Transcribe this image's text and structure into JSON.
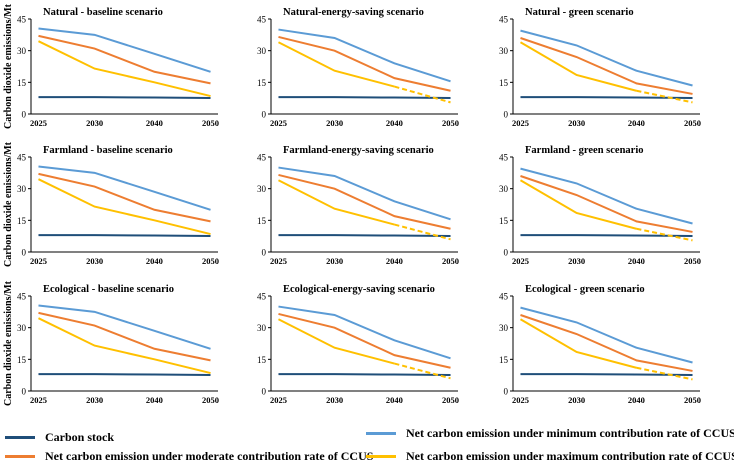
{
  "colors": {
    "carbon_stock": "#1f4e79",
    "min_ccus": "#5b9bd5",
    "moderate_ccus": "#ed7d31",
    "max_ccus": "#ffc000"
  },
  "y_axis_label": "Carbon dioxide emissions/Mt",
  "legend": [
    {
      "key": "carbon_stock",
      "label": "Carbon stock"
    },
    {
      "key": "min_ccus",
      "label": "Net carbon emission under minimum contribution rate of CCUS"
    },
    {
      "key": "moderate_ccus",
      "label": "Net carbon emission under moderate contribution rate of CCUS"
    },
    {
      "key": "max_ccus",
      "label": "Net carbon emission under maximum contribution rate of CCUS"
    }
  ],
  "chart_data": [
    {
      "type": "line",
      "title": "Natural - baseline scenario",
      "categories": [
        "2025",
        "2030",
        "2040",
        "2050"
      ],
      "ylim": [
        0,
        45
      ],
      "yticks": [
        0,
        15,
        30,
        45
      ],
      "y_tick_labels": [
        "0",
        "15",
        "30",
        "45"
      ],
      "show_ylabel": true,
      "series": [
        {
          "key": "carbon_stock",
          "values": [
            8,
            8,
            7.8,
            7.6
          ]
        },
        {
          "key": "min_ccus",
          "values": [
            40.5,
            37.5,
            28.5,
            20
          ]
        },
        {
          "key": "moderate_ccus",
          "values": [
            37,
            31,
            20,
            14.5
          ]
        },
        {
          "key": "max_ccus",
          "values": [
            34.5,
            21.5,
            15,
            8.5
          ]
        }
      ]
    },
    {
      "type": "line",
      "title": "Natural-energy-saving scenario",
      "categories": [
        "2025",
        "2030",
        "2040",
        "2050"
      ],
      "ylim": [
        0,
        45
      ],
      "yticks": [
        0,
        15,
        30,
        45
      ],
      "y_tick_labels": [
        "0",
        "15",
        "30",
        "45"
      ],
      "show_ylabel": false,
      "series": [
        {
          "key": "carbon_stock",
          "values": [
            8,
            8,
            7.8,
            7.6
          ]
        },
        {
          "key": "min_ccus",
          "values": [
            40,
            36,
            24,
            15.5
          ]
        },
        {
          "key": "moderate_ccus",
          "values": [
            36.5,
            30,
            17,
            11
          ]
        },
        {
          "key": "max_ccus",
          "values": [
            34,
            20.5,
            13,
            5.5
          ],
          "dashed_last": true
        }
      ]
    },
    {
      "type": "line",
      "title": "Natural - green scenario",
      "categories": [
        "2025",
        "2030",
        "2040",
        "2050"
      ],
      "ylim": [
        0,
        45
      ],
      "yticks": [
        0,
        15,
        30,
        45
      ],
      "y_tick_labels": [
        "0",
        "15",
        "30",
        "45"
      ],
      "show_ylabel": false,
      "series": [
        {
          "key": "carbon_stock",
          "values": [
            8,
            8,
            7.8,
            7.6
          ]
        },
        {
          "key": "min_ccus",
          "values": [
            39.5,
            32.5,
            20.5,
            13.5
          ]
        },
        {
          "key": "moderate_ccus",
          "values": [
            36,
            27,
            14.5,
            9.5
          ]
        },
        {
          "key": "max_ccus",
          "values": [
            34,
            18.5,
            11,
            5.5
          ],
          "dashed_last": true
        }
      ]
    },
    {
      "type": "line",
      "title": "Farmland - baseline scenario",
      "categories": [
        "2025",
        "2030",
        "2040",
        "2050"
      ],
      "ylim": [
        0,
        45
      ],
      "yticks": [
        0,
        15,
        30,
        45
      ],
      "y_tick_labels": [
        "0",
        "15",
        "30",
        "45"
      ],
      "show_ylabel": true,
      "series": [
        {
          "key": "carbon_stock",
          "values": [
            8,
            8,
            7.8,
            7.6
          ]
        },
        {
          "key": "min_ccus",
          "values": [
            40.5,
            37.5,
            28.5,
            20
          ]
        },
        {
          "key": "moderate_ccus",
          "values": [
            37,
            31,
            20,
            14.5
          ]
        },
        {
          "key": "max_ccus",
          "values": [
            34.5,
            21.5,
            15,
            8.5
          ]
        }
      ]
    },
    {
      "type": "line",
      "title": "Farmland-energy-saving  scenario",
      "categories": [
        "2025",
        "2030",
        "2040",
        "2050"
      ],
      "ylim": [
        0,
        45
      ],
      "yticks": [
        0,
        15,
        30,
        45
      ],
      "y_tick_labels": [
        "0",
        "15",
        "30",
        "45"
      ],
      "show_ylabel": false,
      "series": [
        {
          "key": "carbon_stock",
          "values": [
            8,
            8,
            7.8,
            7.6
          ]
        },
        {
          "key": "min_ccus",
          "values": [
            40,
            36,
            24,
            15.5
          ]
        },
        {
          "key": "moderate_ccus",
          "values": [
            36.5,
            30,
            17,
            11
          ]
        },
        {
          "key": "max_ccus",
          "values": [
            34,
            20.5,
            13,
            6
          ],
          "dashed_last": true
        }
      ]
    },
    {
      "type": "line",
      "title": "Farmland - green scenario",
      "categories": [
        "2025",
        "2030",
        "2040",
        "2050"
      ],
      "ylim": [
        0,
        45
      ],
      "yticks": [
        0,
        15,
        30,
        45
      ],
      "y_tick_labels": [
        "0",
        "15",
        "30",
        "45"
      ],
      "show_ylabel": false,
      "series": [
        {
          "key": "carbon_stock",
          "values": [
            8,
            8,
            7.8,
            7.6
          ]
        },
        {
          "key": "min_ccus",
          "values": [
            39.5,
            32.5,
            20.5,
            13.5
          ]
        },
        {
          "key": "moderate_ccus",
          "values": [
            36,
            27,
            14.5,
            9.5
          ]
        },
        {
          "key": "max_ccus",
          "values": [
            34,
            18.5,
            11,
            5.5
          ],
          "dashed_last": true
        }
      ]
    },
    {
      "type": "line",
      "title": "Ecological - baseline scenario",
      "categories": [
        "2025",
        "2030",
        "2040",
        "2050"
      ],
      "ylim": [
        0,
        45
      ],
      "yticks": [
        0,
        15,
        30,
        45
      ],
      "y_tick_labels": [
        "0",
        "15",
        "30",
        "45"
      ],
      "show_ylabel": true,
      "series": [
        {
          "key": "carbon_stock",
          "values": [
            8,
            8,
            7.8,
            7.6
          ]
        },
        {
          "key": "min_ccus",
          "values": [
            40.5,
            37.5,
            28.5,
            20
          ]
        },
        {
          "key": "moderate_ccus",
          "values": [
            37,
            31,
            20,
            14.5
          ]
        },
        {
          "key": "max_ccus",
          "values": [
            34.5,
            21.5,
            15,
            8.5
          ]
        }
      ]
    },
    {
      "type": "line",
      "title": "Ecological-energy-saving scenario",
      "categories": [
        "2025",
        "2030",
        "2040",
        "2050"
      ],
      "ylim": [
        0,
        45
      ],
      "yticks": [
        0,
        15,
        30,
        45
      ],
      "y_tick_labels": [
        "0",
        "15",
        "30",
        "45"
      ],
      "show_ylabel": false,
      "series": [
        {
          "key": "carbon_stock",
          "values": [
            8,
            8,
            7.8,
            7.6
          ]
        },
        {
          "key": "min_ccus",
          "values": [
            40,
            36,
            24,
            15.5
          ]
        },
        {
          "key": "moderate_ccus",
          "values": [
            36.5,
            30,
            17,
            11
          ]
        },
        {
          "key": "max_ccus",
          "values": [
            34,
            20.5,
            13,
            6
          ],
          "dashed_last": true
        }
      ]
    },
    {
      "type": "line",
      "title": "Ecological - green scenario",
      "categories": [
        "2025",
        "2030",
        "2040",
        "2050"
      ],
      "ylim": [
        0,
        45
      ],
      "yticks": [
        0,
        15,
        30,
        45
      ],
      "y_tick_labels": [
        "0",
        "15",
        "30",
        "45"
      ],
      "show_ylabel": false,
      "series": [
        {
          "key": "carbon_stock",
          "values": [
            8,
            8,
            7.8,
            7.6
          ]
        },
        {
          "key": "min_ccus",
          "values": [
            39.5,
            32.5,
            20.5,
            13.5
          ]
        },
        {
          "key": "moderate_ccus",
          "values": [
            36,
            27,
            14.5,
            9.5
          ]
        },
        {
          "key": "max_ccus",
          "values": [
            34,
            18.5,
            11,
            5.5
          ],
          "dashed_last": true
        }
      ]
    }
  ]
}
